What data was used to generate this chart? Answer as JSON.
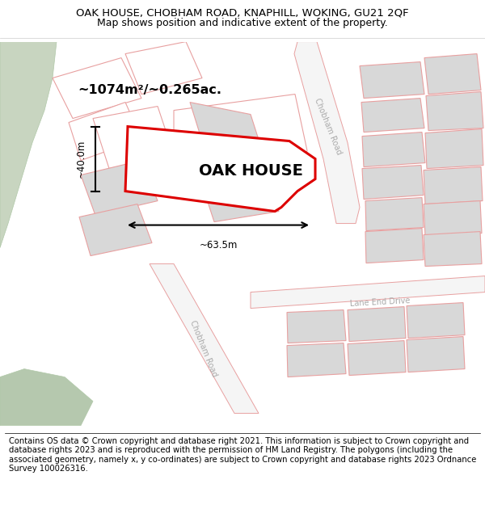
{
  "title": "OAK HOUSE, CHOBHAM ROAD, KNAPHILL, WOKING, GU21 2QF",
  "subtitle": "Map shows position and indicative extent of the property.",
  "footer": "Contains OS data © Crown copyright and database right 2021. This information is subject to Crown copyright and database rights 2023 and is reproduced with the permission of\nHM Land Registry. The polygons (including the associated geometry, namely x, y co-ordinates) are subject to Crown copyright and database rights 2023 Ordnance Survey\n100026316.",
  "area_label": "~1074m²/~0.265ac.",
  "property_label": "OAK HOUSE",
  "width_label": "~63.5m",
  "height_label": "~40.0m",
  "boundary_color": "#dd0000",
  "road_outline": "#e8a0a0",
  "building_fill": "#d8d8d8",
  "building_edge": "#e8a0a0",
  "green1": "#c8d5c0",
  "green2": "#b5c8ae",
  "road_label_color": "#aaaaaa",
  "title_fontsize": 9.5,
  "subtitle_fontsize": 9.0,
  "footer_fontsize": 7.2,
  "dim_fontsize": 8.5,
  "area_fontsize": 11.5,
  "property_fontsize": 14
}
